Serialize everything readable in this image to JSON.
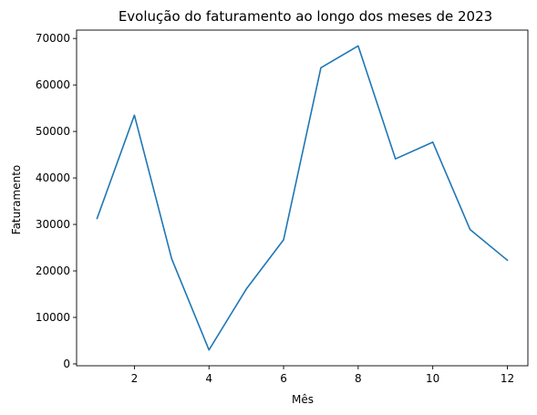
{
  "chart_data": {
    "type": "line",
    "title": "Evolução do faturamento ao longo dos meses de 2023",
    "xlabel": "Mês",
    "ylabel": "Faturamento",
    "x": [
      1,
      2,
      3,
      4,
      5,
      6,
      7,
      8,
      9,
      10,
      11,
      12
    ],
    "series": [
      {
        "values": [
          31300,
          53500,
          22600,
          3000,
          16100,
          26700,
          63700,
          68400,
          44100,
          47700,
          28900,
          22300
        ],
        "color": "#1f77b4"
      }
    ],
    "xlim": [
      0.45,
      12.55
    ],
    "ylim": [
      -400,
      71800
    ],
    "xticks": [
      2,
      4,
      6,
      8,
      10,
      12
    ],
    "xtick_labels": [
      "2",
      "4",
      "6",
      "8",
      "10",
      "12"
    ],
    "yticks": [
      0,
      10000,
      20000,
      30000,
      40000,
      50000,
      60000,
      70000
    ],
    "ytick_labels": [
      "0",
      "10000",
      "20000",
      "30000",
      "40000",
      "50000",
      "60000",
      "70000"
    ],
    "grid": false,
    "legend": "none"
  }
}
